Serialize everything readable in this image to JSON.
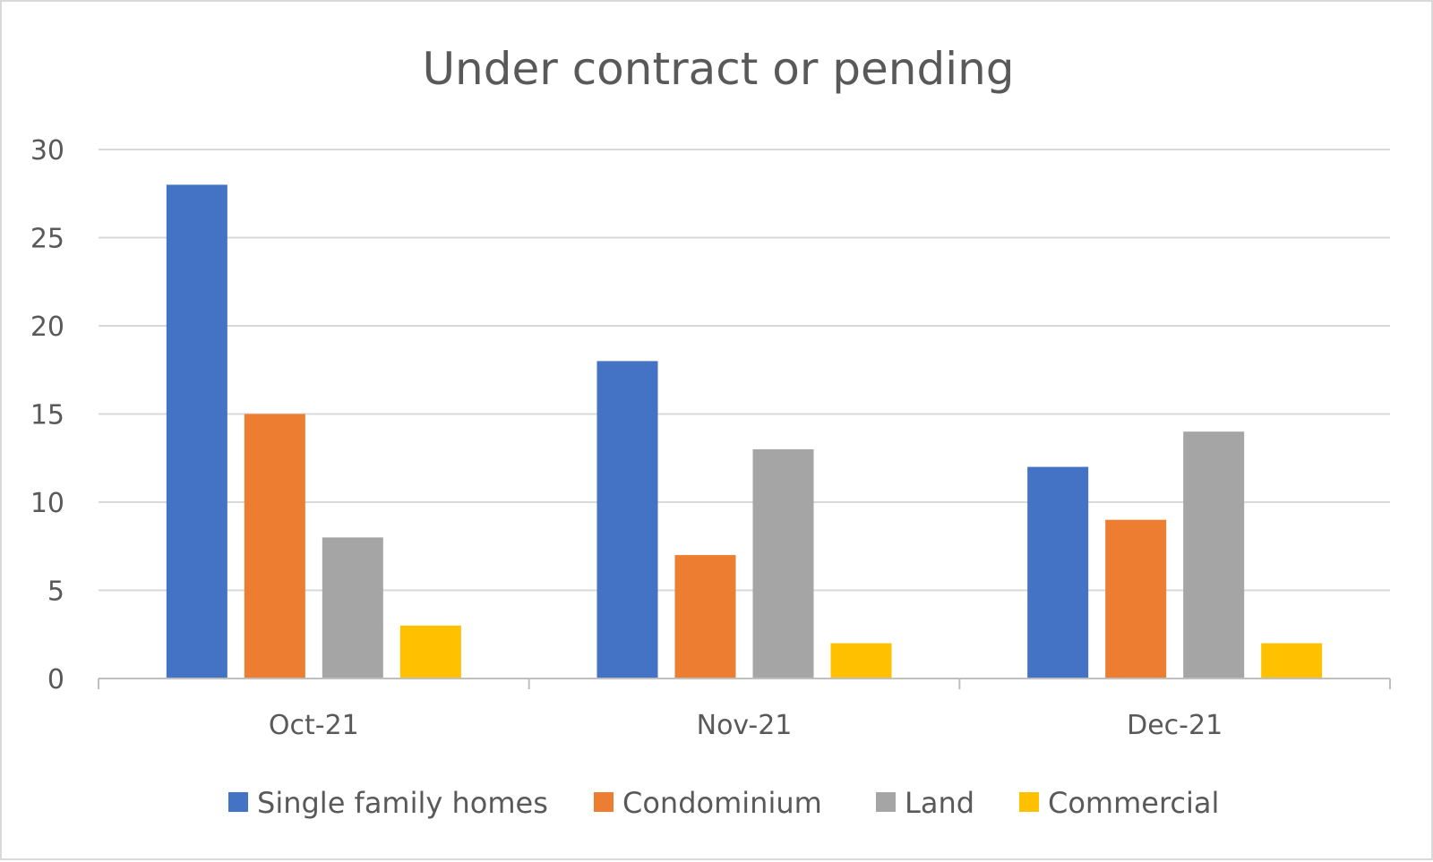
{
  "chart_data": {
    "type": "bar",
    "title": "Under contract or pending",
    "xlabel": "",
    "ylabel": "",
    "categories": [
      "Oct-21",
      "Nov-21",
      "Dec-21"
    ],
    "series": [
      {
        "name": "Single family homes",
        "values": [
          28,
          18,
          12
        ],
        "color": "#4472C4"
      },
      {
        "name": "Condominium",
        "values": [
          15,
          7,
          9
        ],
        "color": "#ED7D31"
      },
      {
        "name": "Land",
        "values": [
          8,
          13,
          14
        ],
        "color": "#A5A5A5"
      },
      {
        "name": "Commercial",
        "values": [
          3,
          2,
          2
        ],
        "color": "#FFC000"
      }
    ],
    "ylim": [
      0,
      30
    ],
    "yticks": [
      0,
      5,
      10,
      15,
      20,
      25,
      30
    ],
    "grid": true,
    "legend": "bottom",
    "colors": {
      "gridline": "#d9d9d9",
      "axis": "#bfbfbf",
      "text": "#595959",
      "border": "#d9d9d9"
    }
  }
}
